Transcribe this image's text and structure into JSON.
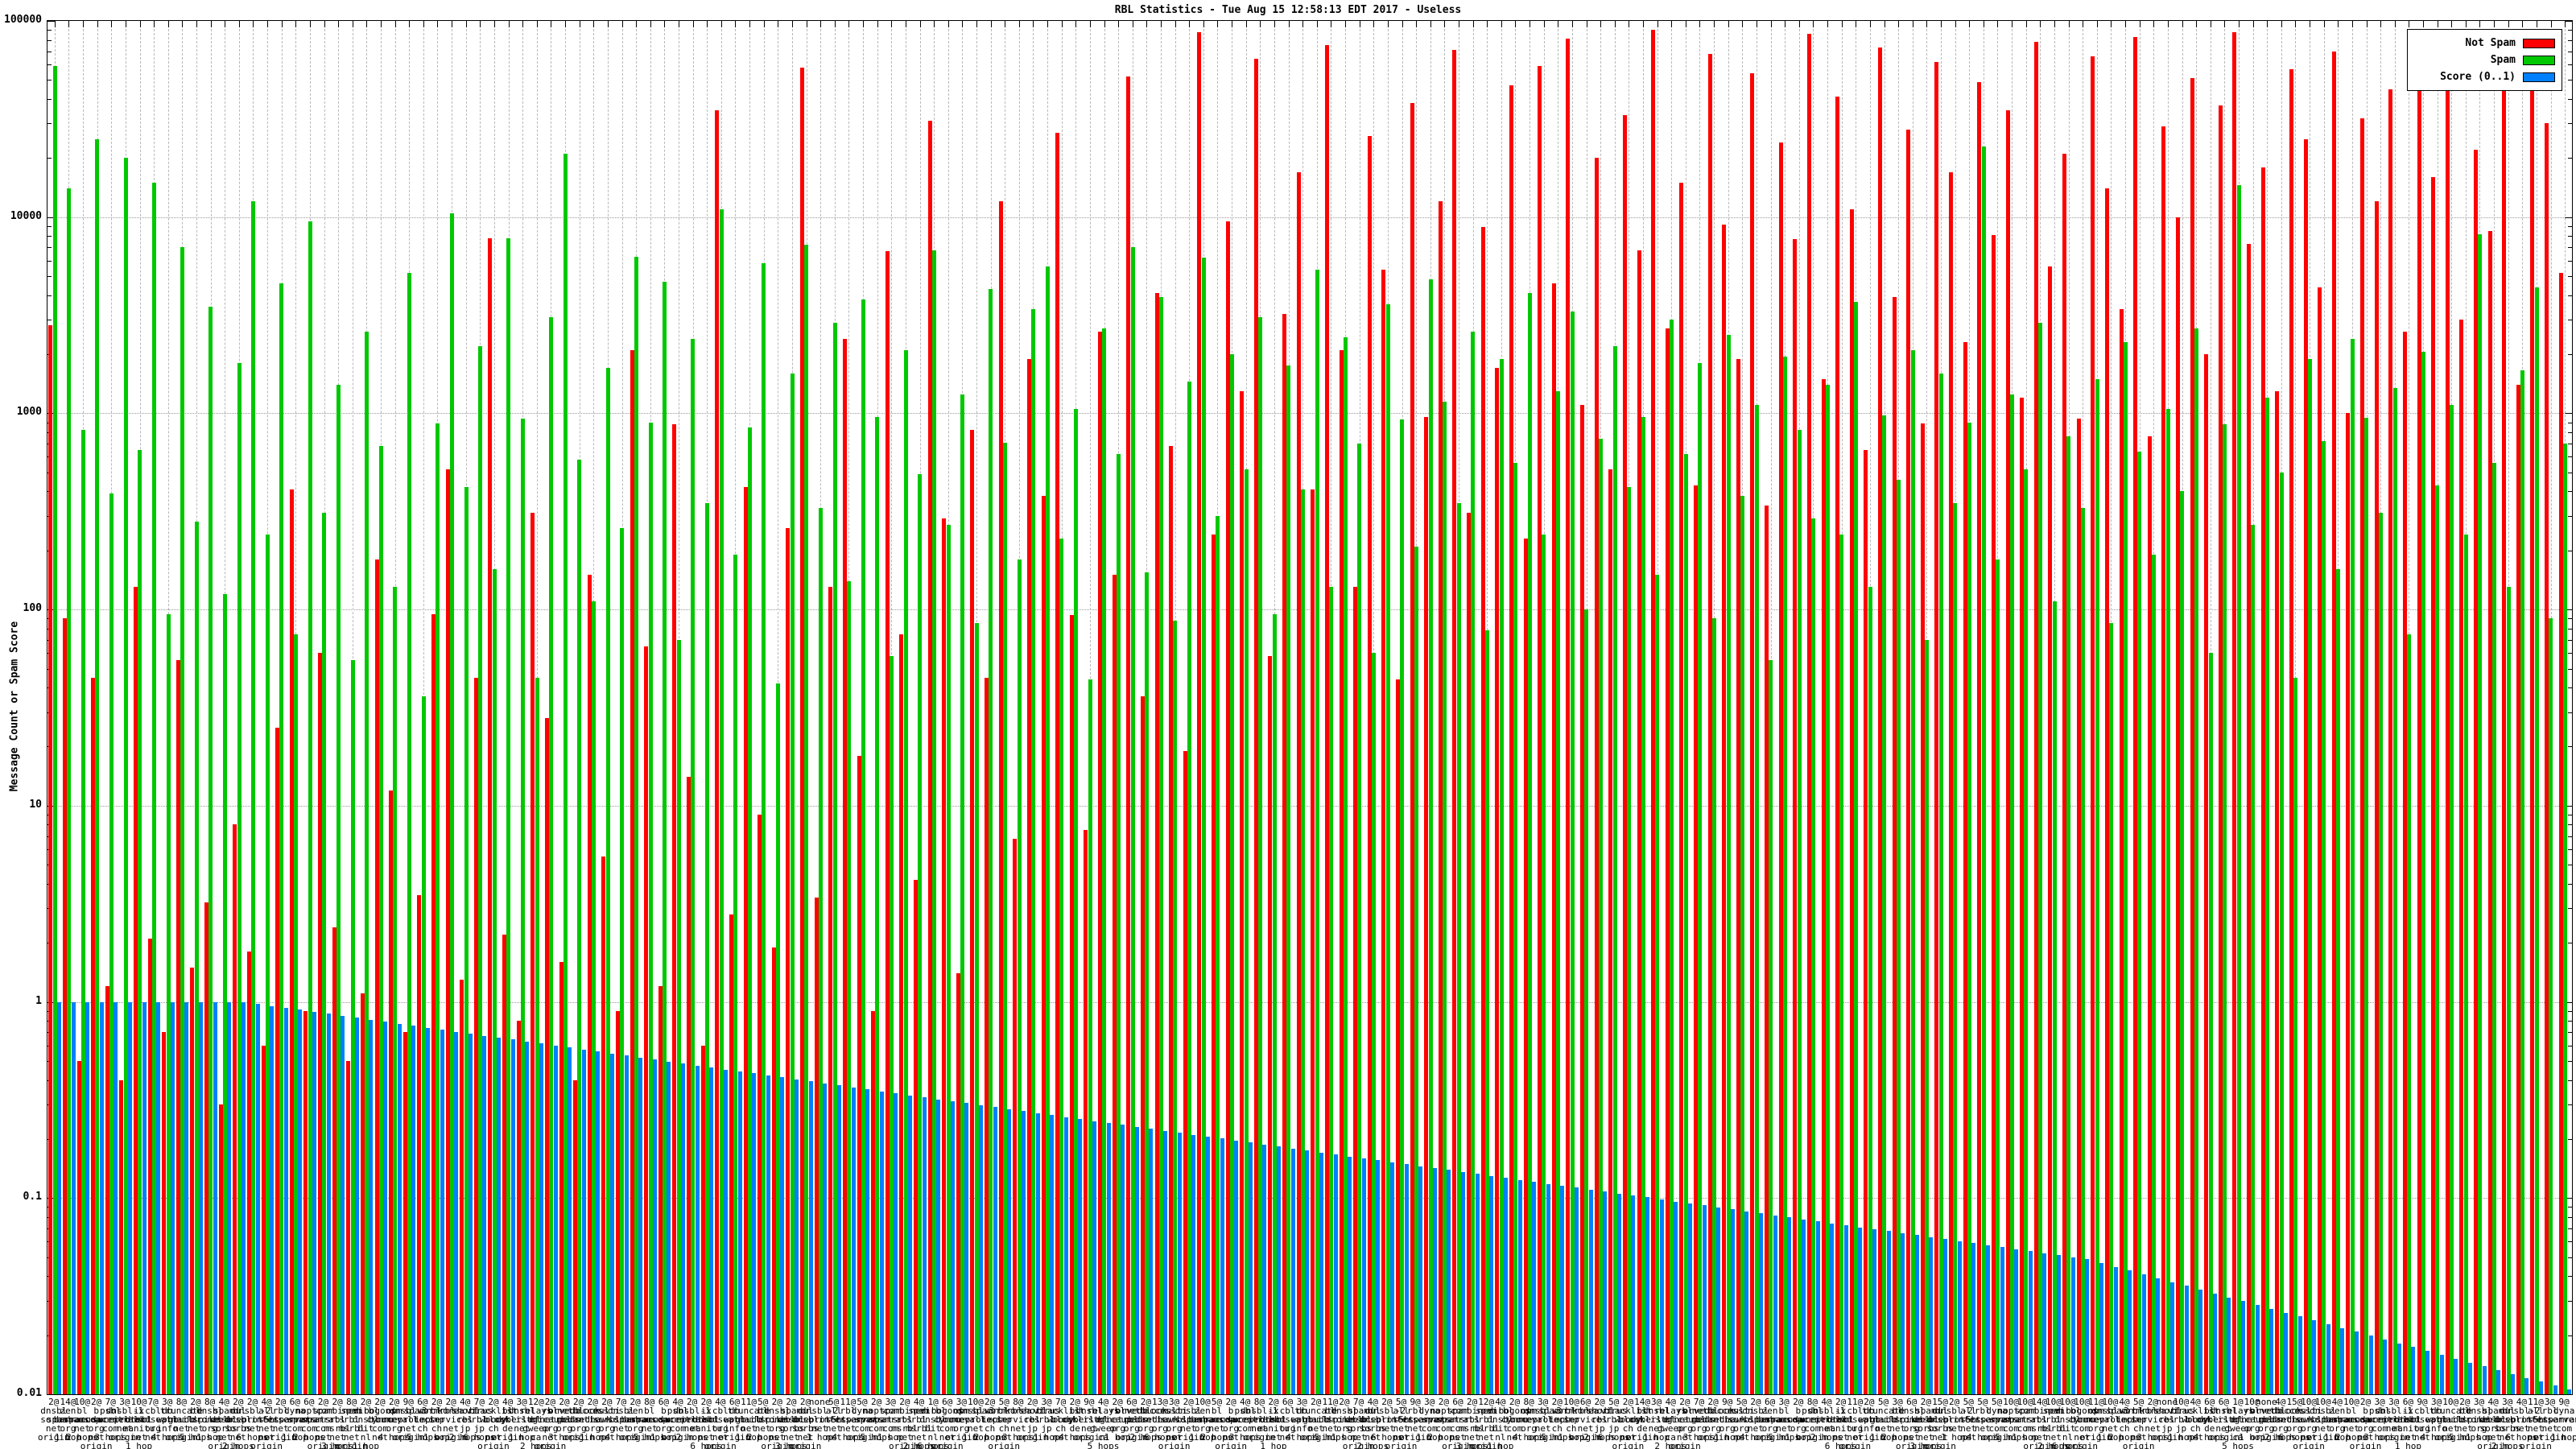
{
  "title": "RBL Statistics - Tue Aug 15 12:58:13 EDT 2017 - Useless",
  "y_axis": {
    "label": "Message Count or Spam Score",
    "tick_labels": [
      "100000",
      "10000",
      "1000",
      "100",
      "10",
      "1",
      "0.1",
      "0.01"
    ],
    "min": 0.01,
    "max": 100000,
    "scale": "log"
  },
  "legend": [
    {
      "label": "Not Spam",
      "color": "#ff0000"
    },
    {
      "label": "Spam",
      "color": "#00c800"
    },
    {
      "label": "Score (0..1)",
      "color": "#0080ff"
    }
  ],
  "colors": {
    "not_spam": "#ff0000",
    "spam": "#00c800",
    "score": "#0080ff",
    "grid_v": "#b8b8b8",
    "grid_h": "#9a9a9a"
  },
  "chart_data": {
    "type": "bar",
    "title": "RBL Statistics - Tue Aug 15 12:58:13 EDT 2017 - Useless",
    "xlabel": "",
    "ylabel": "Message Count or Spam Score",
    "ylim": [
      0.01,
      100000
    ],
    "log_y": true,
    "grid": true,
    "legend_position": "top-right",
    "series": [
      {
        "name": "Not Spam",
        "color": "#ff0000",
        "values": [
          2800,
          90,
          0.5,
          45,
          1.2,
          0.4,
          130,
          2.1,
          0.7,
          55,
          1.5,
          3.2,
          0.3,
          8,
          1.8,
          0.6,
          25,
          410,
          0.9,
          60,
          2.4,
          0.5,
          1.1,
          180,
          12,
          0.7,
          3.5,
          95,
          520,
          1.3,
          45,
          7800,
          2.2,
          0.8,
          310,
          28,
          1.6,
          0.4,
          150,
          5.5,
          0.9,
          2100,
          65,
          1.2,
          880,
          14,
          0.6,
          35000,
          2.8,
          420,
          9,
          1.9,
          260,
          58000,
          3.4,
          130,
          2400,
          18,
          0.9,
          6700,
          75,
          4.2,
          31000,
          290,
          1.4,
          820,
          45,
          12000,
          6.8,
          1900,
          380,
          27000,
          94,
          7.5,
          2600,
          150,
          52000,
          36,
          4100,
          680,
          19,
          88000,
          240,
          9500,
          1300,
          64000,
          58,
          3200,
          17000,
          410,
          75000,
          2100,
          130,
          26000,
          5400,
          44,
          38000,
          960,
          12000,
          71000,
          310,
          8900,
          1700,
          47000,
          230,
          59000,
          4600,
          81000,
          1100,
          20000,
          520,
          33000,
          6800,
          90000,
          2700,
          15000,
          430,
          68000,
          9200,
          1900,
          54000,
          340,
          24000,
          7700,
          86000,
          1500,
          41000,
          11000,
          650,
          73000,
          3900,
          28000,
          890,
          62000,
          17000,
          2300,
          49000,
          8100,
          35000,
          1200,
          78000,
          5600,
          21000,
          940,
          66000,
          14000,
          3400,
          83000,
          760,
          29000,
          10000,
          51000,
          2000,
          37000,
          88000,
          7300,
          18000,
          1300,
          57000,
          25000,
          4400,
          70000,
          1000,
          32000,
          12000,
          45000,
          2600,
          90000,
          16000,
          63000,
          3000,
          22000,
          8500,
          48000,
          1400,
          76000,
          30000,
          5200
        ]
      },
      {
        "name": "Spam",
        "color": "#00c800",
        "values": [
          59000,
          14000,
          820,
          25000,
          390,
          20000,
          650,
          15000,
          95,
          7000,
          280,
          3500,
          120,
          1800,
          12000,
          240,
          4600,
          75,
          9500,
          310,
          1400,
          55,
          2600,
          680,
          130,
          5200,
          36,
          890,
          10500,
          420,
          2200,
          160,
          7800,
          940,
          45,
          3100,
          21000,
          580,
          110,
          1700,
          260,
          6300,
          900,
          4700,
          70,
          2400,
          350,
          11000,
          190,
          850,
          5800,
          42,
          1600,
          7200,
          330,
          2900,
          140,
          3800,
          960,
          58,
          2100,
          490,
          6800,
          270,
          1250,
          85,
          4300,
          710,
          180,
          3400,
          5600,
          230,
          1050,
          44,
          2700,
          620,
          7000,
          155,
          3900,
          88,
          1450,
          6200,
          300,
          2000,
          520,
          3100,
          95,
          1750,
          410,
          5400,
          130,
          2450,
          700,
          60,
          3600,
          930,
          210,
          4800,
          1150,
          350,
          2600,
          78,
          1900,
          560,
          4100,
          240,
          1300,
          3300,
          100,
          740,
          2200,
          420,
          960,
          150,
          3000,
          620,
          1800,
          90,
          2500,
          380,
          1100,
          55,
          1950,
          820,
          290,
          1400,
          240,
          3700,
          130,
          980,
          460,
          2100,
          70,
          1600,
          350,
          900,
          23000,
          180,
          1250,
          520,
          2900,
          110,
          760,
          330,
          1500,
          85,
          2300,
          640,
          190,
          1050,
          400,
          2700,
          60,
          880,
          14500,
          270,
          1200,
          500,
          45,
          1900,
          720,
          160,
          2400,
          950,
          310,
          1350,
          75,
          2050,
          430,
          1100,
          240,
          8200,
          560,
          130,
          1650,
          4400,
          90,
          700
        ]
      },
      {
        "name": "Score (0..1)",
        "color": "#0080ff",
        "values": [
          1.0,
          1.0,
          1.0,
          1.0,
          1.0,
          1.0,
          1.0,
          1.0,
          1.0,
          1.0,
          1.0,
          1.0,
          1.0,
          1.0,
          0.977,
          0.954,
          0.932,
          0.911,
          0.89,
          0.869,
          0.849,
          0.83,
          0.811,
          0.792,
          0.774,
          0.756,
          0.738,
          0.721,
          0.705,
          0.688,
          0.673,
          0.657,
          0.642,
          0.627,
          0.613,
          0.599,
          0.585,
          0.571,
          0.558,
          0.545,
          0.533,
          0.52,
          0.508,
          0.497,
          0.485,
          0.474,
          0.463,
          0.452,
          0.442,
          0.432,
          0.422,
          0.412,
          0.403,
          0.394,
          0.385,
          0.376,
          0.367,
          0.359,
          0.35,
          0.342,
          0.334,
          0.327,
          0.319,
          0.312,
          0.305,
          0.298,
          0.291,
          0.284,
          0.278,
          0.271,
          0.265,
          0.259,
          0.253,
          0.247,
          0.241,
          0.236,
          0.231,
          0.225,
          0.22,
          0.215,
          0.21,
          0.205,
          0.201,
          0.196,
          0.192,
          0.187,
          0.183,
          0.179,
          0.175,
          0.171,
          0.167,
          0.163,
          0.159,
          0.156,
          0.152,
          0.149,
          0.145,
          0.142,
          0.139,
          0.136,
          0.133,
          0.13,
          0.127,
          0.124,
          0.121,
          0.118,
          0.116,
          0.113,
          0.11,
          0.108,
          0.105,
          0.103,
          0.101,
          0.0984,
          0.0961,
          0.0939,
          0.0918,
          0.0897,
          0.0876,
          0.0856,
          0.0836,
          0.0817,
          0.0798,
          0.078,
          0.0762,
          0.0744,
          0.0727,
          0.071,
          0.0694,
          0.0678,
          0.0662,
          0.0647,
          0.0632,
          0.0617,
          0.0603,
          0.0589,
          0.0575,
          0.0562,
          0.0549,
          0.0536,
          0.0524,
          0.0512,
          0.05,
          0.0489,
          0.0467,
          0.0447,
          0.0427,
          0.0408,
          0.039,
          0.0373,
          0.0357,
          0.0341,
          0.0326,
          0.0312,
          0.0298,
          0.0285,
          0.0272,
          0.026,
          0.0249,
          0.0238,
          0.0228,
          0.0218,
          0.0208,
          0.0199,
          0.019,
          0.0182,
          0.0174,
          0.0166,
          0.0159,
          0.0152,
          0.0145,
          0.0139,
          0.0133,
          0.0127,
          0.0121,
          0.0116,
          0.0111,
          0.0106
        ]
      }
    ],
    "categories": {
      "note": "x labels are densely overprinted: hit count, RBL hostname broken on dots, hop designator",
      "counts": [
        "2@",
        "14@",
        "10@",
        "2@",
        "7@",
        "3@",
        "10@",
        "7@",
        "3@",
        "8@",
        "2@",
        "8@",
        "4@",
        "2@",
        "2@",
        "4@",
        "2@",
        "6@",
        "6@",
        "2@",
        "2@",
        "8@",
        "2@",
        "2@",
        "2@",
        "9@",
        "6@",
        "2@",
        "2@",
        "4@",
        "7@",
        "2@",
        "4@",
        "3@",
        "12@",
        "2@",
        "2@",
        "2@",
        "2@",
        "2@",
        "7@",
        "2@",
        "8@",
        "6@",
        "4@",
        "2@",
        "2@",
        "4@",
        "6@",
        "11@",
        "5@",
        "2@",
        "2@",
        "2@",
        "none",
        "5@",
        "11@",
        "5@",
        "2@",
        "3@",
        "2@",
        "4@",
        "1@",
        "6@",
        "3@",
        "10@",
        "2@",
        "5@",
        "8@",
        "2@",
        "3@",
        "7@",
        "2@",
        "9@",
        "4@",
        "2@",
        "6@",
        "2@",
        "13@",
        "3@",
        "2@",
        "10@",
        "5@",
        "2@",
        "4@",
        "8@",
        "2@",
        "6@",
        "3@",
        "2@",
        "11@",
        "2@",
        "7@",
        "4@",
        "2@",
        "5@",
        "9@",
        "3@",
        "2@",
        "6@",
        "2@",
        "12@",
        "4@",
        "2@",
        "8@",
        "3@",
        "2@",
        "10@",
        "6@",
        "2@",
        "5@",
        "2@",
        "14@",
        "3@",
        "4@",
        "2@",
        "7@",
        "2@",
        "9@",
        "5@",
        "2@",
        "6@",
        "3@",
        "2@",
        "8@",
        "4@",
        "2@",
        "11@",
        "2@",
        "5@",
        "3@",
        "6@",
        "2@",
        "15@",
        "2@",
        "5@",
        "5@",
        "5@",
        "10@",
        "10@",
        "14@",
        "10@",
        "10@",
        "10@",
        "11@",
        "10@",
        "4@",
        "5@",
        "2@",
        "none",
        "10@",
        "4@",
        "6@",
        "6@",
        "1@",
        "10@",
        "none",
        "4@",
        "15@",
        "10@",
        "10@",
        "4@",
        "10@",
        "2@",
        "3@",
        "3@",
        "6@",
        "9@",
        "3@",
        "10@",
        "2@",
        "3@",
        "4@",
        "3@",
        "4@",
        "11@",
        "3@",
        "9@"
      ],
      "name_pool": [
        "dnsbl.sorbs.net",
        "zen.spamhaus.org",
        "bl.spamcop.net",
        "b.barracudacentral.org",
        "psbl.surriel.com",
        "dnsbl-1.uceprotect.net",
        "ix.dnsbl.manitu.net",
        "cbl.abuseat.org",
        "db.wpbl.info",
        "truncate.gbudb.net",
        "bl.mailspike.net",
        "dnsbl.dronebl.org",
        "spam.dnsbl.sorbs.net",
        "dul.dnsbl.sorbs.net",
        "dnsbl-2.uceprotect.net",
        "all.s5h.net",
        "rbl.interserver.net",
        "dyna.spamrats.com",
        "noptr.spamrats.com",
        "spam.spamrats.com",
        "combined.rbl.msrbl.net",
        "spam.rbl.msrbl.net",
        "virbl.dnsbl.bit.nl",
        "bogons.cymru.com",
        "opm.tornevall.org",
        "dnsbl-3.uceprotect.net",
        "spamrbl.imp.ch",
        "wormrbl.imp.ch",
        "korea.services.net",
        "short.rbl.jp",
        "virus.rbl.jp",
        "blacklist.woody.ch",
        "bl.blocklist.de",
        "dnsbl.cyberlogic.net",
        "relays.bl.gweep.ca",
        "rbl.efnetrbl.org",
        "orvedb.aupads.org",
        "netblock.pedantic.org",
        "access.redhawk.org",
        "multi.surbl.org"
      ],
      "hops_pool": [
        "origin",
        "1 hop",
        "2 hops",
        "net\norigin",
        "3 hops",
        "origin",
        "1 hop",
        "net",
        "4 hops",
        "origin",
        "5 hops",
        "1 hop",
        "origin",
        "2 hops",
        "6 hops",
        "net\norigin"
      ]
    }
  }
}
